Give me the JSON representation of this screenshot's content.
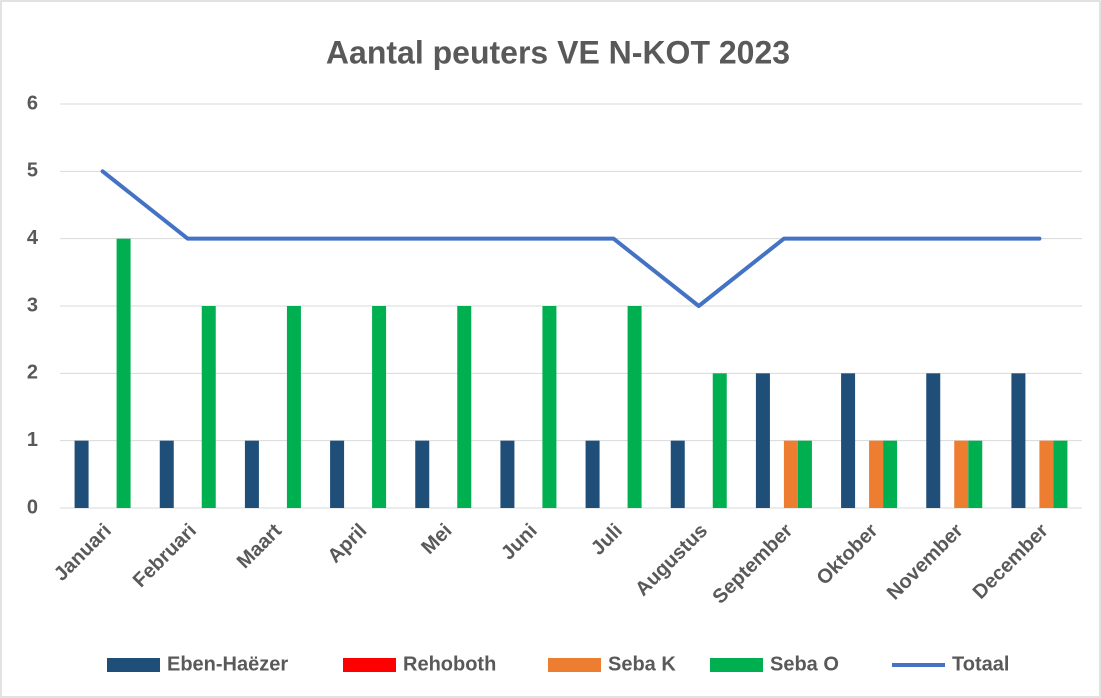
{
  "chart_data": {
    "type": "bar",
    "title": "Aantal peuters VE N-KOT 2023",
    "categories": [
      "Januari",
      "Februari",
      "Maart",
      "April",
      "Mei",
      "Juni",
      "Juli",
      "Augustus",
      "September",
      "Oktober",
      "November",
      "December"
    ],
    "series": [
      {
        "name": "Eben-Haëzer",
        "color": "#1f4e79",
        "values": [
          1,
          1,
          1,
          1,
          1,
          1,
          1,
          1,
          2,
          2,
          2,
          2
        ]
      },
      {
        "name": "Rehoboth",
        "color": "#ff0000",
        "values": [
          0,
          0,
          0,
          0,
          0,
          0,
          0,
          0,
          0,
          0,
          0,
          0
        ]
      },
      {
        "name": "Seba K",
        "color": "#ed7d31",
        "values": [
          0,
          0,
          0,
          0,
          0,
          0,
          0,
          0,
          1,
          1,
          1,
          1
        ]
      },
      {
        "name": "Seba O",
        "color": "#00b050",
        "values": [
          4,
          3,
          3,
          3,
          3,
          3,
          3,
          2,
          1,
          1,
          1,
          1
        ]
      },
      {
        "name": "Totaal",
        "color": "#4472c4",
        "type": "line",
        "values": [
          5,
          4,
          4,
          4,
          4,
          4,
          4,
          3,
          4,
          4,
          4,
          4
        ]
      }
    ],
    "ylim": [
      0,
      6
    ],
    "yticks": [
      0,
      1,
      2,
      3,
      4,
      5,
      6
    ],
    "grid": true,
    "legend": "bottom"
  }
}
